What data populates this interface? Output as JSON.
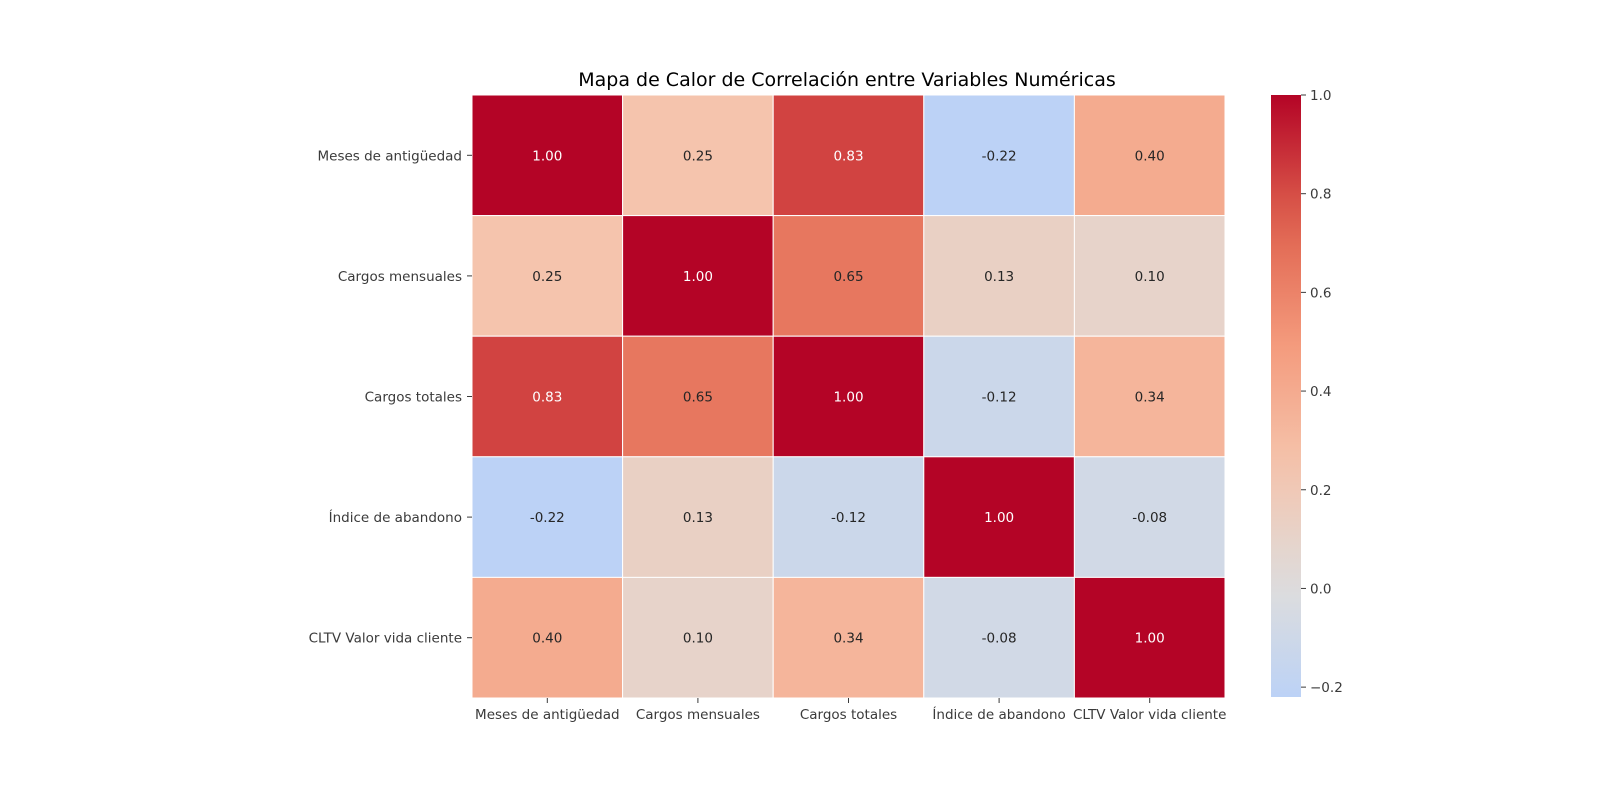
{
  "chart_data": {
    "type": "heatmap",
    "title": "Mapa de Calor de Correlación entre Variables Numéricas",
    "row_labels": [
      "Meses de antigüedad",
      "Cargos mensuales",
      "Cargos totales",
      "Índice de abandono",
      "CLTV Valor vida cliente"
    ],
    "col_labels": [
      "Meses de antigüedad",
      "Cargos mensuales",
      "Cargos totales",
      "Índice de abandono",
      "CLTV Valor vida cliente"
    ],
    "values": [
      [
        1.0,
        0.25,
        0.83,
        -0.22,
        0.4
      ],
      [
        0.25,
        1.0,
        0.65,
        0.13,
        0.1
      ],
      [
        0.83,
        0.65,
        1.0,
        -0.12,
        0.34
      ],
      [
        -0.22,
        0.13,
        -0.12,
        1.0,
        -0.08
      ],
      [
        0.4,
        0.1,
        0.34,
        -0.08,
        1.0
      ]
    ],
    "value_labels": [
      [
        "1.00",
        "0.25",
        "0.83",
        "-0.22",
        "0.40"
      ],
      [
        "0.25",
        "1.00",
        "0.65",
        "0.13",
        "0.10"
      ],
      [
        "0.83",
        "0.65",
        "1.00",
        "-0.12",
        "0.34"
      ],
      [
        "-0.22",
        "0.13",
        "-0.12",
        "1.00",
        "-0.08"
      ],
      [
        "0.40",
        "0.10",
        "0.34",
        "-0.08",
        "1.00"
      ]
    ],
    "colormap": "coolwarm",
    "color_center": 0.0,
    "vmin": -0.22,
    "vmax": 1.0,
    "colorbar": {
      "ticks": [
        -0.2,
        0.0,
        0.2,
        0.4,
        0.6,
        0.8,
        1.0
      ],
      "tick_labels": [
        "−0.2",
        "0.0",
        "0.2",
        "0.4",
        "0.6",
        "0.8",
        "1.0"
      ],
      "placement": "right"
    }
  }
}
